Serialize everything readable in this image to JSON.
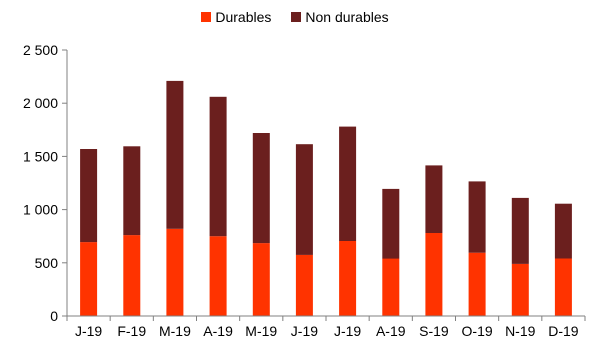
{
  "colors": {
    "durables": "#FF3300",
    "non_durables": "#6B1F1E",
    "axis": "#808080"
  },
  "chart_data": {
    "type": "bar",
    "stacked": true,
    "categories": [
      "J-19",
      "F-19",
      "M-19",
      "A-19",
      "M-19",
      "J-19",
      "J-19",
      "A-19",
      "S-19",
      "O-19",
      "N-19",
      "D-19"
    ],
    "series": [
      {
        "name": "Durables",
        "values": [
          695,
          760,
          820,
          750,
          685,
          575,
          705,
          540,
          780,
          595,
          490,
          540
        ]
      },
      {
        "name": "Non durables",
        "values": [
          875,
          835,
          1390,
          1310,
          1035,
          1040,
          1075,
          655,
          635,
          670,
          620,
          515
        ]
      }
    ],
    "ylim": [
      0,
      2500
    ],
    "yticks": [
      0,
      500,
      1000,
      1500,
      2000,
      2500
    ],
    "ytick_labels": [
      "0",
      "500",
      "1 000",
      "1 500",
      "2 000",
      "2 500"
    ],
    "legend": "top-center",
    "grid": false
  }
}
